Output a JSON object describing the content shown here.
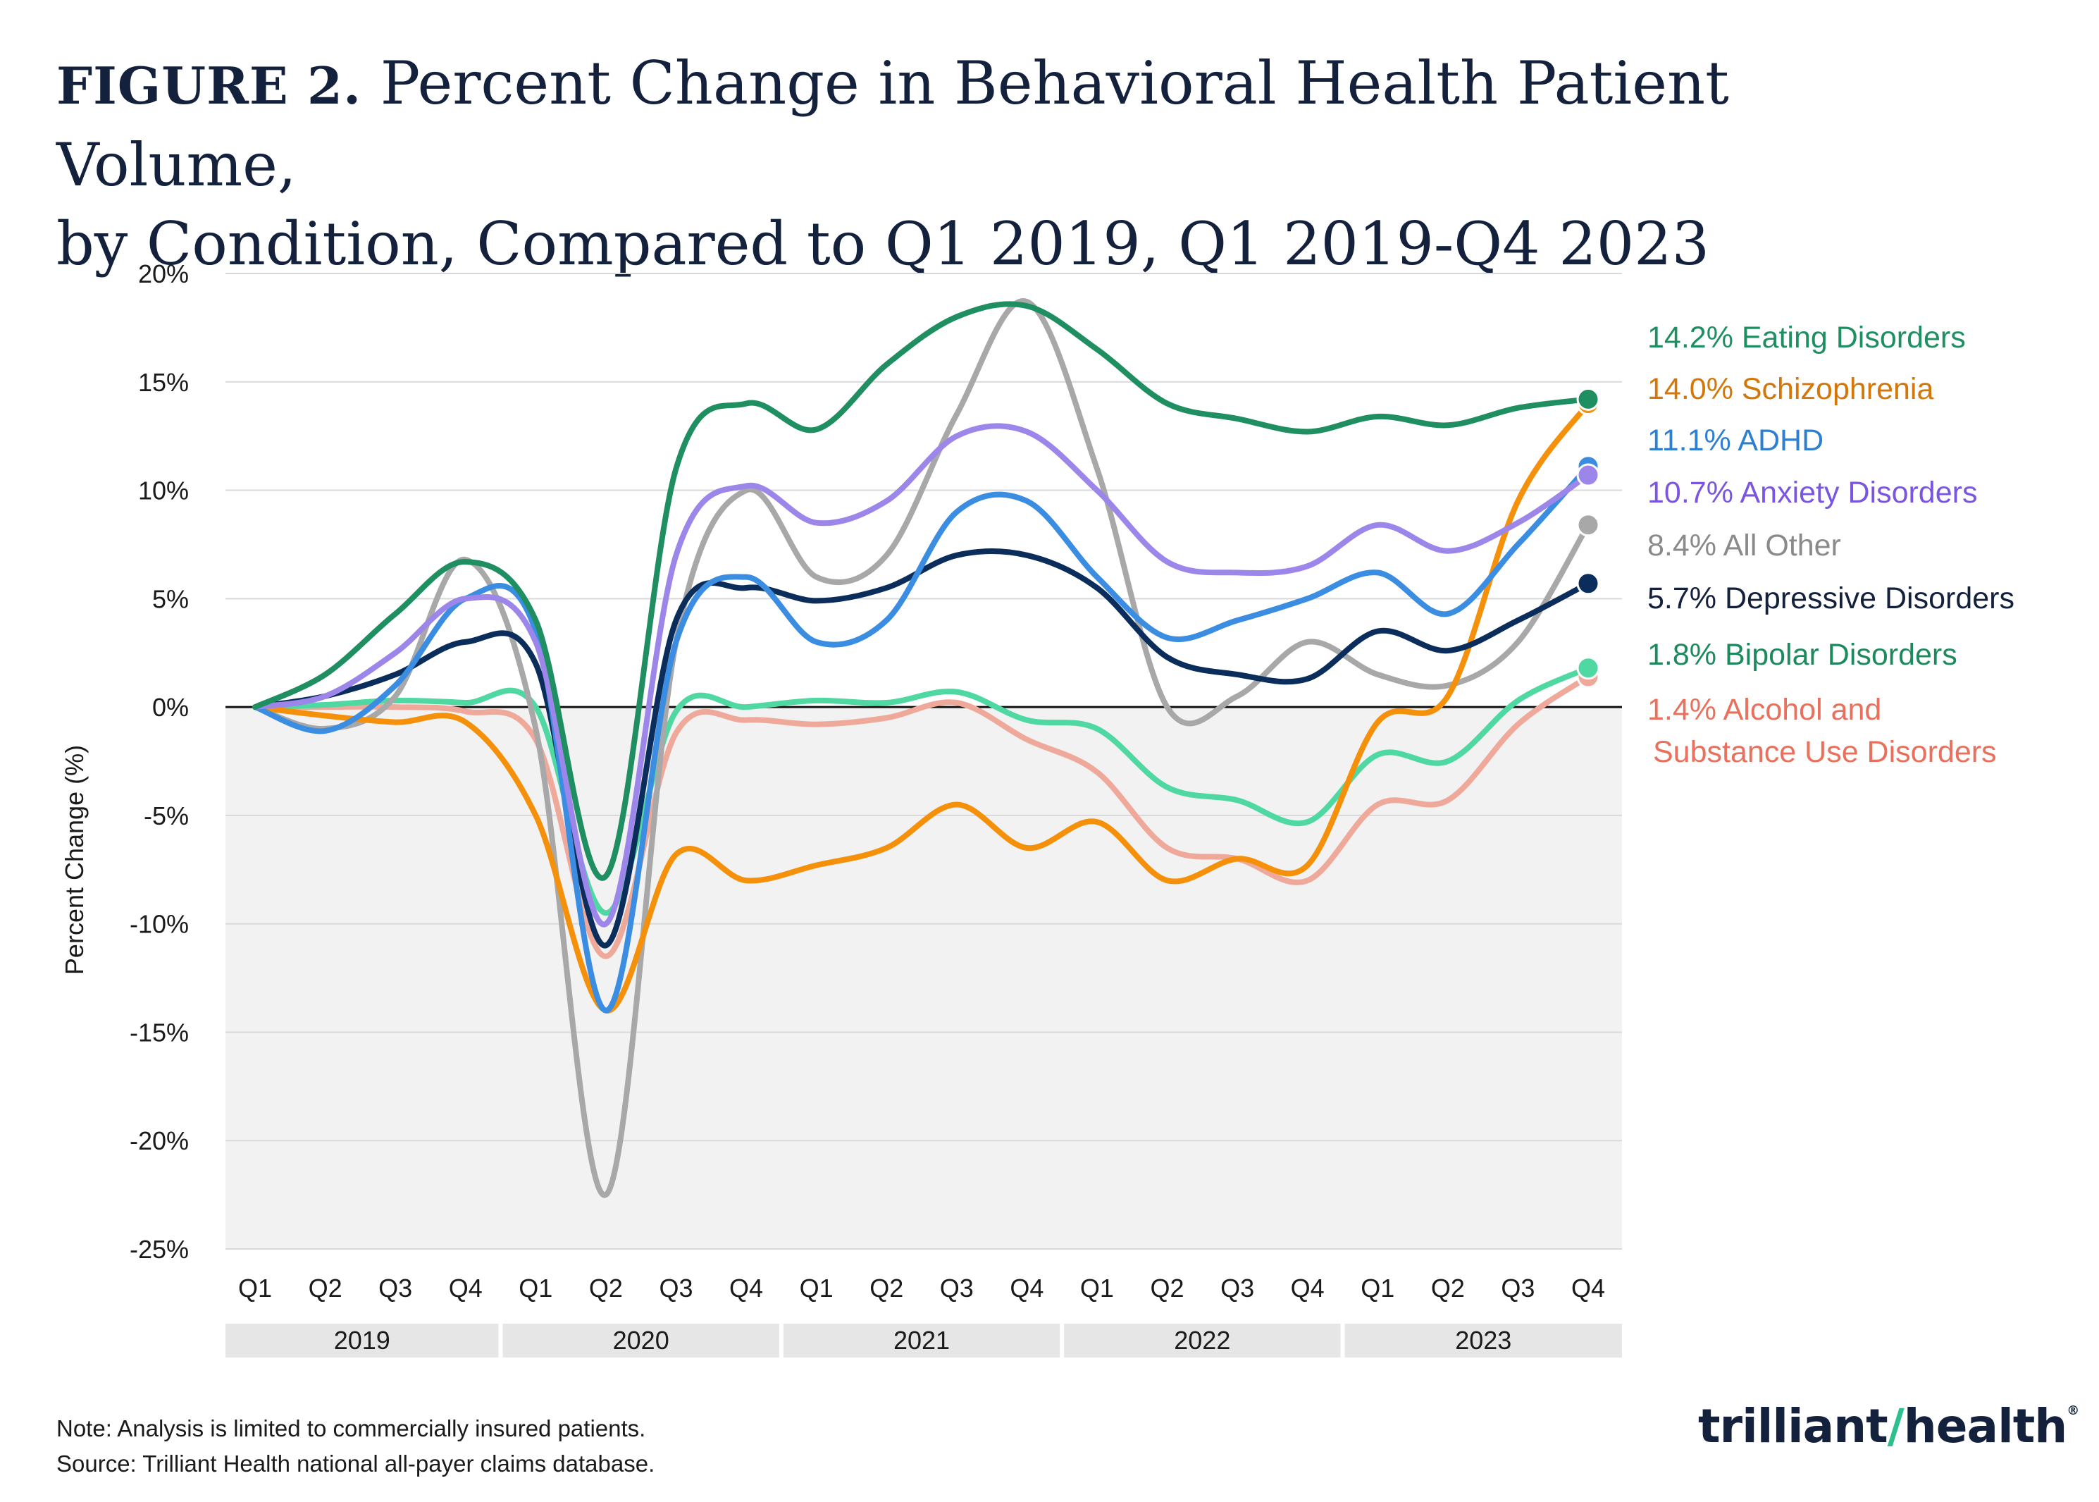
{
  "title": {
    "figure_label": "FIGURE 2.",
    "line1": "Percent Change in Behavioral Health Patient Volume,",
    "line2": "by Condition, Compared to Q1 2019, Q1 2019-Q4 2023"
  },
  "notes": {
    "note": "Note: Analysis is limited to commercially insured patients.",
    "source": "Source: Trilliant Health national all-payer claims database."
  },
  "logo": {
    "part1": "trilliant",
    "part2": "health",
    "mark": "®"
  },
  "chart_data": {
    "type": "line",
    "ylabel": "Percent Change (%)",
    "ylim": [
      -25,
      20
    ],
    "yticks": [
      20,
      15,
      10,
      5,
      0,
      -5,
      -10,
      -15,
      -20,
      -25
    ],
    "ytick_labels": [
      "20%",
      "15%",
      "10%",
      "5%",
      "0%",
      "-5%",
      "-10%",
      "-15%",
      "-20%",
      "-25%"
    ],
    "grid": true,
    "legend_position": "right",
    "x": [
      "Q1",
      "Q2",
      "Q3",
      "Q4",
      "Q1",
      "Q2",
      "Q3",
      "Q4",
      "Q1",
      "Q2",
      "Q3",
      "Q4",
      "Q1",
      "Q2",
      "Q3",
      "Q4",
      "Q1",
      "Q2",
      "Q3",
      "Q4"
    ],
    "years": [
      "2019",
      "2020",
      "2021",
      "2022",
      "2023"
    ],
    "series": [
      {
        "name": "Alcohol and Substance Use Disorders",
        "value_label": "1.4%",
        "label_line1": "Alcohol and",
        "label_line2": "Substance Use Disorders",
        "color": "#efa99b",
        "label_color": "#e8705c",
        "values": [
          0,
          0,
          0,
          -0.2,
          -1.5,
          -11.5,
          -1.2,
          -0.6,
          -0.8,
          -0.5,
          0.2,
          -1.5,
          -3.0,
          -6.5,
          -7.0,
          -8.0,
          -4.5,
          -4.3,
          -0.8,
          1.4
        ]
      },
      {
        "name": "Bipolar Disorders",
        "value_label": "1.8%",
        "color": "#4fd8a2",
        "label_color": "#1d8a5e",
        "values": [
          0,
          0.1,
          0.3,
          0.2,
          0.0,
          -9.5,
          -0.2,
          0.0,
          0.3,
          0.2,
          0.7,
          -0.6,
          -1.0,
          -3.7,
          -4.3,
          -5.3,
          -2.2,
          -2.5,
          0.3,
          1.8
        ]
      },
      {
        "name": "All Other",
        "value_label": "8.4%",
        "color": "#a8a8a8",
        "label_color": "#8a8a8a",
        "values": [
          0,
          -1.0,
          0.5,
          6.8,
          -1.0,
          -22.5,
          3.0,
          10.0,
          6.0,
          7.0,
          13.5,
          18.7,
          11.0,
          0.0,
          0.5,
          3.0,
          1.5,
          1.0,
          3.0,
          8.4
        ]
      },
      {
        "name": "Schizophrenia",
        "value_label": "14.0%",
        "color": "#f5900b",
        "label_color": "#d4770a",
        "values": [
          0,
          -0.4,
          -0.7,
          -0.7,
          -5.0,
          -14.0,
          -6.8,
          -8.0,
          -7.3,
          -6.5,
          -4.5,
          -6.5,
          -5.3,
          -8.0,
          -7.0,
          -7.3,
          -0.7,
          0.5,
          9.5,
          14.0
        ]
      },
      {
        "name": "Depressive Disorders",
        "value_label": "5.7%",
        "color": "#0b2d5b",
        "label_color": "#14213d",
        "values": [
          0,
          0.5,
          1.5,
          3.0,
          2.0,
          -11.0,
          4.0,
          5.5,
          4.9,
          5.5,
          7.0,
          7.0,
          5.5,
          2.3,
          1.5,
          1.3,
          3.5,
          2.6,
          4.0,
          5.7
        ]
      },
      {
        "name": "ADHD",
        "value_label": "11.1%",
        "color": "#3a8de0",
        "label_color": "#2f7fd0",
        "values": [
          0,
          -1.1,
          1.0,
          5.0,
          3.5,
          -14.0,
          3.0,
          6.0,
          3.0,
          4.0,
          9.0,
          9.5,
          6.0,
          3.2,
          4.0,
          5.0,
          6.2,
          4.3,
          7.5,
          11.1
        ]
      },
      {
        "name": "Anxiety Disorders",
        "value_label": "10.7%",
        "color": "#9c86ea",
        "label_color": "#7a56e0",
        "values": [
          0,
          0.5,
          2.5,
          5.0,
          3.0,
          -10.0,
          7.0,
          10.2,
          8.5,
          9.5,
          12.5,
          12.7,
          10.0,
          6.7,
          6.2,
          6.5,
          8.4,
          7.2,
          8.5,
          10.7
        ]
      },
      {
        "name": "Eating Disorders",
        "value_label": "14.2%",
        "color": "#1f8f62",
        "label_color": "#1f8f62",
        "values": [
          0,
          1.5,
          4.3,
          6.7,
          4.0,
          -7.8,
          11.0,
          14.0,
          12.8,
          15.8,
          18.0,
          18.5,
          16.5,
          14.0,
          13.3,
          12.7,
          13.4,
          13.0,
          13.8,
          14.2
        ]
      }
    ]
  }
}
